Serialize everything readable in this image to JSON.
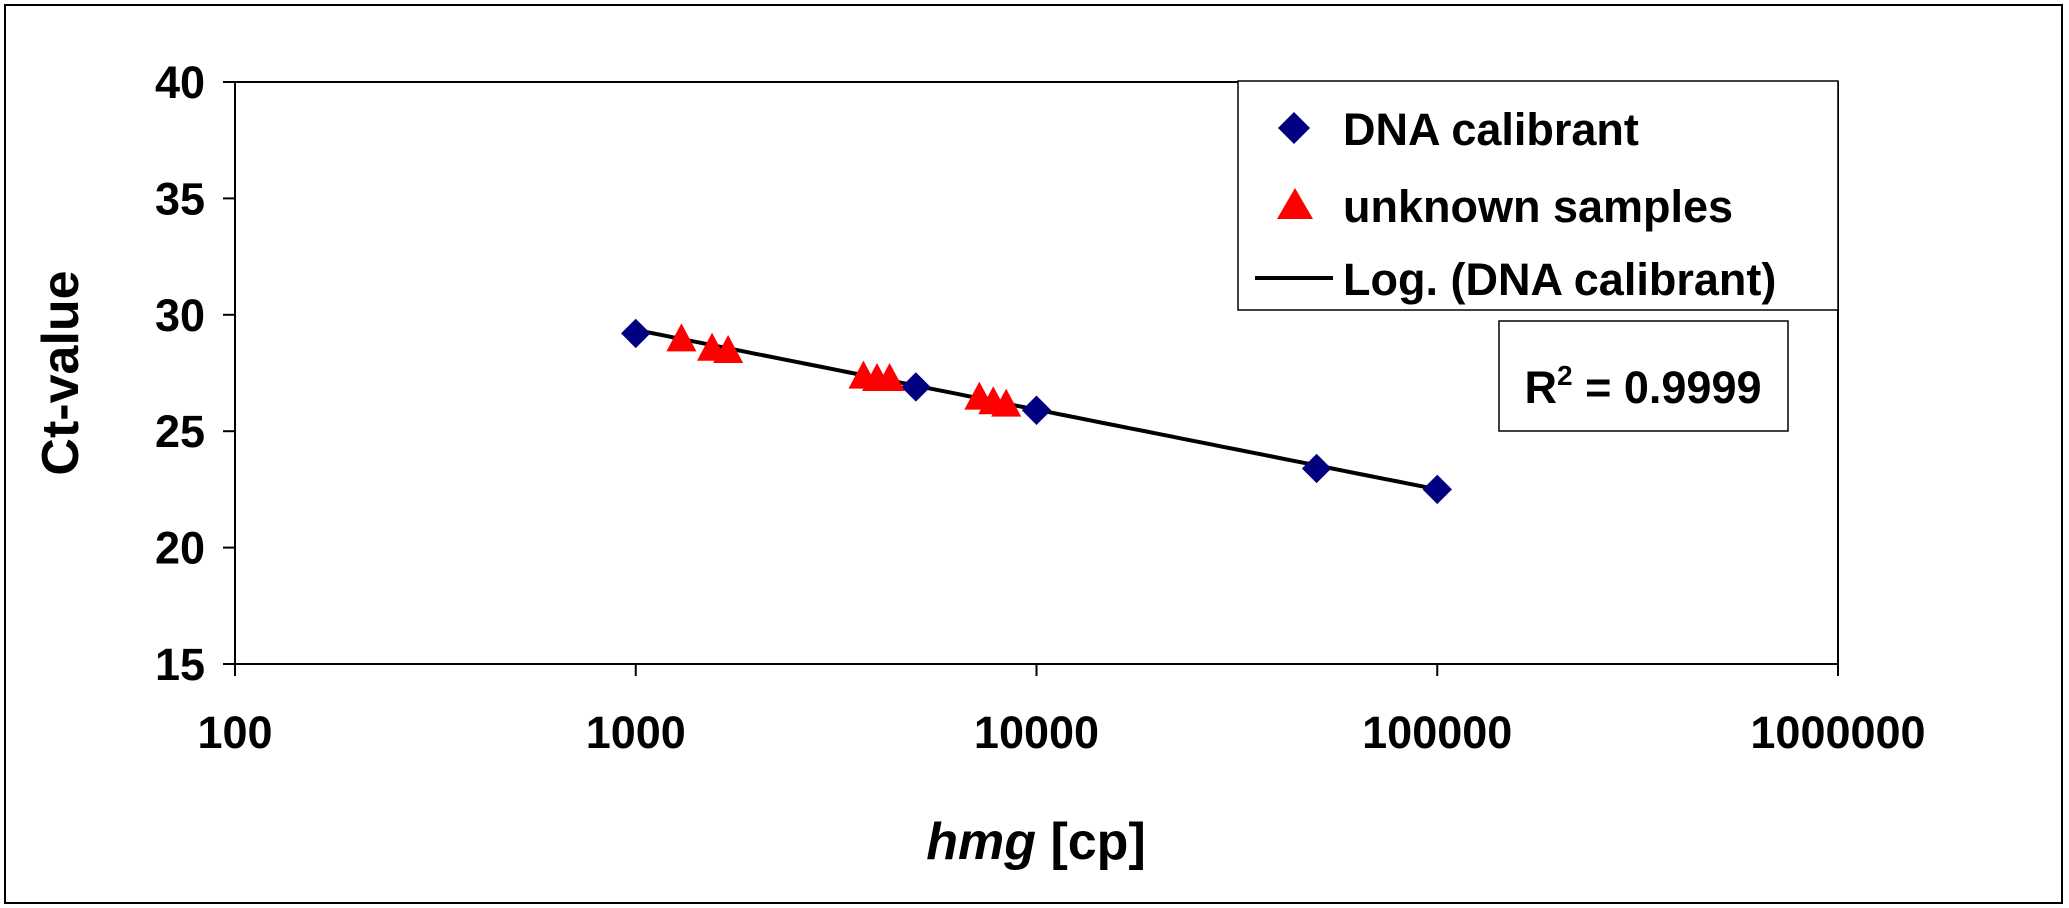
{
  "chart_data": {
    "type": "scatter",
    "x_scale": "log",
    "xlim": [
      100,
      1000000
    ],
    "ylim": [
      15,
      40
    ],
    "x_ticks": [
      "100",
      "1000",
      "10000",
      "100000",
      "1000000"
    ],
    "x_tick_values": [
      100,
      1000,
      10000,
      100000,
      1000000
    ],
    "y_ticks": [
      "40",
      "35",
      "30",
      "25",
      "20",
      "15"
    ],
    "y_tick_values": [
      40,
      35,
      30,
      25,
      20,
      15
    ],
    "xlabel_italic": "hmg",
    "xlabel_rest": " [cp]",
    "ylabel": "Ct-value",
    "grid": false,
    "legend_position": "top-right",
    "series": [
      {
        "name": "DNA calibrant",
        "marker": "diamond",
        "color": "#000080",
        "x": [
          1000,
          5000,
          10000,
          50000,
          100000
        ],
        "y": [
          29.2,
          26.9,
          25.9,
          23.4,
          22.5
        ]
      },
      {
        "name": "unknown samples",
        "marker": "triangle",
        "color": "#ff0000",
        "x": [
          1300,
          1550,
          1700,
          3700,
          4000,
          4300,
          7200,
          7800,
          8400
        ],
        "y": [
          28.9,
          28.5,
          28.4,
          27.3,
          27.2,
          27.2,
          26.4,
          26.2,
          26.1
        ]
      },
      {
        "name": "Log. (DNA calibrant)",
        "type": "trendline",
        "color": "#000000",
        "x_range": [
          1000,
          100000
        ],
        "y_at_range": [
          29.35,
          22.5
        ]
      }
    ],
    "annotation": {
      "r2_label": "R",
      "r2_sup": "2",
      "r2_value": " = 0.9999"
    }
  }
}
